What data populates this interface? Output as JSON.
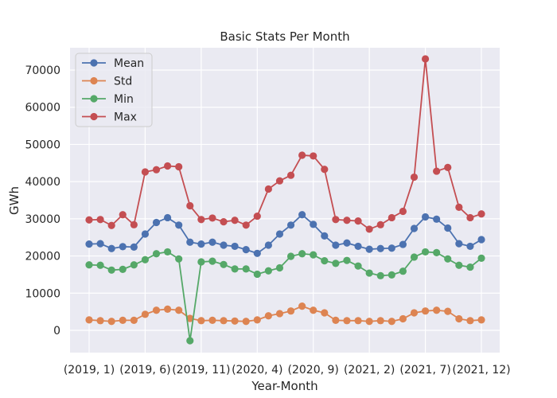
{
  "chart_data": {
    "type": "line",
    "title": "Basic Stats Per Month",
    "xlabel": "Year-Month",
    "ylabel": "GWh",
    "ylim": [
      -6000,
      76000
    ],
    "yticks": [
      0,
      10000,
      20000,
      30000,
      40000,
      50000,
      60000,
      70000
    ],
    "ytick_labels": [
      "0",
      "10000",
      "20000",
      "30000",
      "40000",
      "50000",
      "60000",
      "70000"
    ],
    "xtick_labels": [
      "(2019, 1)",
      "(2019, 6)",
      "(2019, 11)",
      "(2020, 4)",
      "(2020, 9)",
      "(2021, 2)",
      "(2021, 7)",
      "(2021, 12)"
    ],
    "xtick_indices": [
      0,
      5,
      10,
      15,
      20,
      25,
      30,
      35
    ],
    "n_points": 36,
    "grid": true,
    "legend_position": "top-left",
    "series": [
      {
        "name": "Mean",
        "color": "#4c72b0",
        "values": [
          23200,
          23300,
          22000,
          22500,
          22400,
          25900,
          29000,
          30300,
          28300,
          23700,
          23200,
          23700,
          22900,
          22600,
          21700,
          20700,
          22900,
          25900,
          28300,
          31100,
          28500,
          25400,
          22900,
          23500,
          22600,
          21800,
          22000,
          22100,
          23100,
          27400,
          30500,
          29900,
          27500,
          23300,
          22600,
          24400
        ]
      },
      {
        "name": "Std",
        "color": "#dd8452",
        "values": [
          2800,
          2600,
          2400,
          2700,
          2700,
          4300,
          5400,
          5700,
          5400,
          3200,
          2600,
          2700,
          2600,
          2500,
          2400,
          2800,
          3900,
          4500,
          5200,
          6500,
          5400,
          4700,
          2700,
          2600,
          2600,
          2400,
          2600,
          2400,
          3100,
          4700,
          5200,
          5400,
          5100,
          3100,
          2600,
          2800
        ]
      },
      {
        "name": "Min",
        "color": "#55a868",
        "values": [
          17600,
          17500,
          16200,
          16400,
          17600,
          19000,
          20600,
          21100,
          19200,
          -2800,
          18400,
          18600,
          17700,
          16500,
          16500,
          15100,
          16000,
          16800,
          19900,
          20600,
          20300,
          18700,
          18000,
          18800,
          17300,
          15400,
          14700,
          14900,
          15900,
          19700,
          21100,
          20900,
          19200,
          17500,
          17000,
          19400
        ]
      },
      {
        "name": "Max",
        "color": "#c44e52",
        "values": [
          29700,
          29800,
          28200,
          31100,
          28400,
          42600,
          43200,
          44200,
          44000,
          33500,
          29800,
          30200,
          29200,
          29600,
          28300,
          30700,
          38000,
          40200,
          41700,
          47100,
          46900,
          43300,
          29800,
          29600,
          29400,
          27200,
          28400,
          30300,
          32000,
          41200,
          73000,
          42800,
          43800,
          33100,
          30300,
          31300
        ]
      }
    ]
  }
}
